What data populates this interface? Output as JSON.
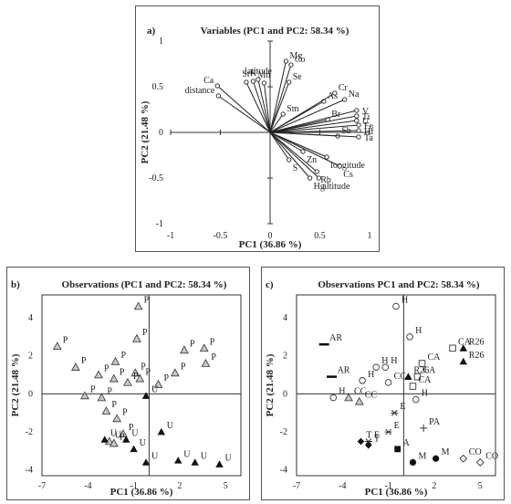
{
  "chart_data": [
    {
      "panel": "a)",
      "type": "scatter",
      "subtype": "biplot-vectors",
      "title": "Variables (PC1 and PC2: 58.34 %)",
      "xlabel": "PC1 (36.86 %)",
      "ylabel": "PC2 (21.48 %)",
      "xlim": [
        -1,
        1
      ],
      "ylim": [
        -1,
        1
      ],
      "xticks": [
        "-1",
        "-0.5",
        "0",
        "0.5",
        "1"
      ],
      "yticks": [
        "1",
        "0.5",
        "0",
        "-0.5",
        "-1"
      ],
      "vectors": [
        {
          "name": "Mg",
          "x": 0.16,
          "y": 0.78
        },
        {
          "name": "Co",
          "x": 0.21,
          "y": 0.74
        },
        {
          "name": "Se",
          "x": 0.19,
          "y": 0.55
        },
        {
          "name": "latitude",
          "x": -0.12,
          "y": 0.58
        },
        {
          "name": "Mn",
          "x": -0.06,
          "y": 0.54
        },
        {
          "name": "Sr",
          "x": -0.24,
          "y": 0.55
        },
        {
          "name": "K",
          "x": -0.17,
          "y": 0.56
        },
        {
          "name": "Ca",
          "x": -0.53,
          "y": 0.51
        },
        {
          "name": "distance",
          "x": -0.52,
          "y": 0.4
        },
        {
          "name": "As",
          "x": 0.54,
          "y": 0.34
        },
        {
          "name": "Cr",
          "x": 0.65,
          "y": 0.43
        },
        {
          "name": "Na",
          "x": 0.75,
          "y": 0.36
        },
        {
          "name": "Sm",
          "x": 0.13,
          "y": 0.2
        },
        {
          "name": "Br",
          "x": 0.58,
          "y": 0.14
        },
        {
          "name": "V",
          "x": 0.87,
          "y": 0.24
        },
        {
          "name": "Ti",
          "x": 0.87,
          "y": 0.18
        },
        {
          "name": "U",
          "x": 0.87,
          "y": 0.13
        },
        {
          "name": "Fe",
          "x": 0.89,
          "y": 0.08
        },
        {
          "name": "Hf",
          "x": 0.89,
          "y": 0.02
        },
        {
          "name": "Sb",
          "x": 0.68,
          "y": -0.04
        },
        {
          "name": "Ta",
          "x": 0.89,
          "y": -0.05
        },
        {
          "name": "Zn",
          "x": 0.33,
          "y": -0.21
        },
        {
          "name": "longitude",
          "x": 0.57,
          "y": -0.27
        },
        {
          "name": "S",
          "x": 0.19,
          "y": -0.3
        },
        {
          "name": "Cs",
          "x": 0.7,
          "y": -0.37
        },
        {
          "name": "Rb",
          "x": 0.47,
          "y": -0.43
        },
        {
          "name": "Hg",
          "x": 0.4,
          "y": -0.5
        },
        {
          "name": "altitude",
          "x": 0.49,
          "y": -0.5
        }
      ]
    },
    {
      "panel": "b)",
      "type": "scatter",
      "title": "Observations (PC1 and PC2: 58.34 %)",
      "xlabel": "PC1 (36.86 %)",
      "ylabel": "PC2 (21.48 %)",
      "xlim": [
        -7,
        6
      ],
      "ylim": [
        -4.3,
        5.2
      ],
      "xticks": [
        "-7",
        "-4",
        "-1",
        "2",
        "5"
      ],
      "yticks": [
        "4",
        "2",
        "0",
        "-2",
        "-4"
      ],
      "points": [
        {
          "label": "P",
          "marker": "triangle-open",
          "x": -0.7,
          "y": 4.6
        },
        {
          "label": "P",
          "marker": "triangle-open",
          "x": -6.0,
          "y": 2.5
        },
        {
          "label": "P",
          "marker": "triangle-open",
          "x": -0.8,
          "y": 2.9
        },
        {
          "label": "P",
          "marker": "triangle-open",
          "x": 2.3,
          "y": 2.3
        },
        {
          "label": "P",
          "marker": "triangle-open",
          "x": 3.6,
          "y": 2.4
        },
        {
          "label": "P",
          "marker": "triangle-open",
          "x": 3.7,
          "y": 1.6
        },
        {
          "label": "P",
          "marker": "triangle-open",
          "x": -2.2,
          "y": 1.7
        },
        {
          "label": "P",
          "marker": "triangle-open",
          "x": 1.7,
          "y": 1.1
        },
        {
          "label": "P",
          "marker": "triangle-open",
          "x": -4.8,
          "y": 1.4
        },
        {
          "label": "P",
          "marker": "triangle-open",
          "x": -3.3,
          "y": 1.0
        },
        {
          "label": "P",
          "marker": "triangle-open",
          "x": -0.9,
          "y": 1.1
        },
        {
          "label": "P",
          "marker": "triangle-open",
          "x": -2.3,
          "y": 0.8
        },
        {
          "label": "P",
          "marker": "triangle-open",
          "x": -0.6,
          "y": 0.8
        },
        {
          "label": "P",
          "marker": "triangle-open",
          "x": 0.6,
          "y": 0.5
        },
        {
          "label": "P",
          "marker": "triangle-open",
          "x": -1.4,
          "y": 0.6
        },
        {
          "label": "P",
          "marker": "triangle-open",
          "x": -4.2,
          "y": -0.1
        },
        {
          "label": "P",
          "marker": "triangle-open",
          "x": -3.1,
          "y": -0.2
        },
        {
          "label": "P",
          "marker": "triangle-open",
          "x": -2.8,
          "y": -0.9
        },
        {
          "label": "P",
          "marker": "triangle-open",
          "x": -2.1,
          "y": -1.3
        },
        {
          "label": "P",
          "marker": "triangle-open",
          "x": -1.7,
          "y": -2.1
        },
        {
          "label": "U",
          "marker": "triangle-open",
          "x": -2.6,
          "y": -2.5
        },
        {
          "label": "P",
          "marker": "triangle-open",
          "x": -2.3,
          "y": -2.6
        },
        {
          "label": "U",
          "marker": "triangle-filled",
          "x": -0.2,
          "y": -0.1
        },
        {
          "label": "U",
          "marker": "triangle-filled",
          "x": 0.8,
          "y": -2.0
        },
        {
          "label": "U",
          "marker": "triangle-filled",
          "x": -0.2,
          "y": -3.6
        },
        {
          "label": "U",
          "marker": "triangle-filled",
          "x": 1.9,
          "y": -3.5
        },
        {
          "label": "U",
          "marker": "triangle-filled",
          "x": 3.0,
          "y": -3.6
        },
        {
          "label": "U",
          "marker": "triangle-filled",
          "x": 4.6,
          "y": -3.7
        },
        {
          "label": "U",
          "marker": "triangle-filled",
          "x": -2.9,
          "y": -2.4
        },
        {
          "label": "U",
          "marker": "triangle-filled",
          "x": -1.5,
          "y": -2.4
        },
        {
          "label": "U",
          "marker": "triangle-filled",
          "x": -1.0,
          "y": -2.9
        }
      ]
    },
    {
      "panel": "c)",
      "type": "scatter",
      "title": "Observations PC1 and PC2: 58.34 %)",
      "xlabel": "PC1 (36.86 %)",
      "ylabel": "PC2 (21.48 %)",
      "xlim": [
        -7,
        6
      ],
      "ylim": [
        -4.3,
        5.2
      ],
      "xticks": [
        "-7",
        "-4",
        "-1",
        "2",
        "5"
      ],
      "yticks": [
        "4",
        "2",
        "0",
        "-2",
        "-4"
      ],
      "points": [
        {
          "label": "H",
          "marker": "circle-open",
          "x": -0.5,
          "y": 4.6
        },
        {
          "label": "H",
          "marker": "circle-open",
          "x": 0.4,
          "y": 3.0
        },
        {
          "label": "H",
          "marker": "circle-open",
          "x": -1.8,
          "y": 1.4
        },
        {
          "label": "H",
          "marker": "circle-open",
          "x": -1.2,
          "y": 1.4
        },
        {
          "label": "H",
          "marker": "circle-open",
          "x": -2.7,
          "y": 0.7
        },
        {
          "label": "H",
          "marker": "circle-open",
          "x": -4.6,
          "y": -0.2
        },
        {
          "label": "H",
          "marker": "circle-open",
          "x": 0.8,
          "y": -0.3
        },
        {
          "label": "CC",
          "marker": "circle-open",
          "x": -1.0,
          "y": 0.6
        },
        {
          "label": "CC",
          "marker": "triangle-open",
          "x": -3.6,
          "y": -0.2
        },
        {
          "label": "CC",
          "marker": "triangle-open",
          "x": -2.9,
          "y": -0.4
        },
        {
          "label": "CA",
          "marker": "square-open",
          "x": 3.2,
          "y": 2.4
        },
        {
          "label": "CA",
          "marker": "square-open",
          "x": 1.2,
          "y": 1.6
        },
        {
          "label": "CA",
          "marker": "square-open",
          "x": 0.9,
          "y": 0.9
        },
        {
          "label": "CA",
          "marker": "square-open",
          "x": 0.6,
          "y": 0.4
        },
        {
          "label": "R26",
          "marker": "triangle-filled",
          "x": 0.3,
          "y": 0.9
        },
        {
          "label": "R26",
          "marker": "triangle-filled",
          "x": 3.9,
          "y": 2.4
        },
        {
          "label": "R26",
          "marker": "triangle-filled",
          "x": 3.9,
          "y": 1.7
        },
        {
          "label": "AR",
          "marker": "dash",
          "x": -5.2,
          "y": 2.6
        },
        {
          "label": "AR",
          "marker": "dash",
          "x": -4.7,
          "y": 0.9
        },
        {
          "label": "E",
          "marker": "asterisk",
          "x": -0.6,
          "y": -1.0
        },
        {
          "label": "E",
          "marker": "asterisk",
          "x": -1.0,
          "y": -2.0
        },
        {
          "label": "E",
          "marker": "asterisk",
          "x": -2.3,
          "y": -2.5
        },
        {
          "label": "T",
          "marker": "diamond-filled",
          "x": -2.8,
          "y": -2.5
        },
        {
          "label": "T",
          "marker": "diamond-filled",
          "x": -2.3,
          "y": -2.7
        },
        {
          "label": "PA",
          "marker": "plus",
          "x": 1.3,
          "y": -1.8
        },
        {
          "label": "A",
          "marker": "square-filled",
          "x": -0.4,
          "y": -2.9
        },
        {
          "label": "M",
          "marker": "circle-filled",
          "x": 0.6,
          "y": -3.6
        },
        {
          "label": "M",
          "marker": "circle-filled",
          "x": 2.1,
          "y": -3.4
        },
        {
          "label": "CO",
          "marker": "diamond-open",
          "x": 3.9,
          "y": -3.4
        },
        {
          "label": "CO",
          "marker": "diamond-open",
          "x": 5.0,
          "y": -3.6
        }
      ]
    }
  ]
}
